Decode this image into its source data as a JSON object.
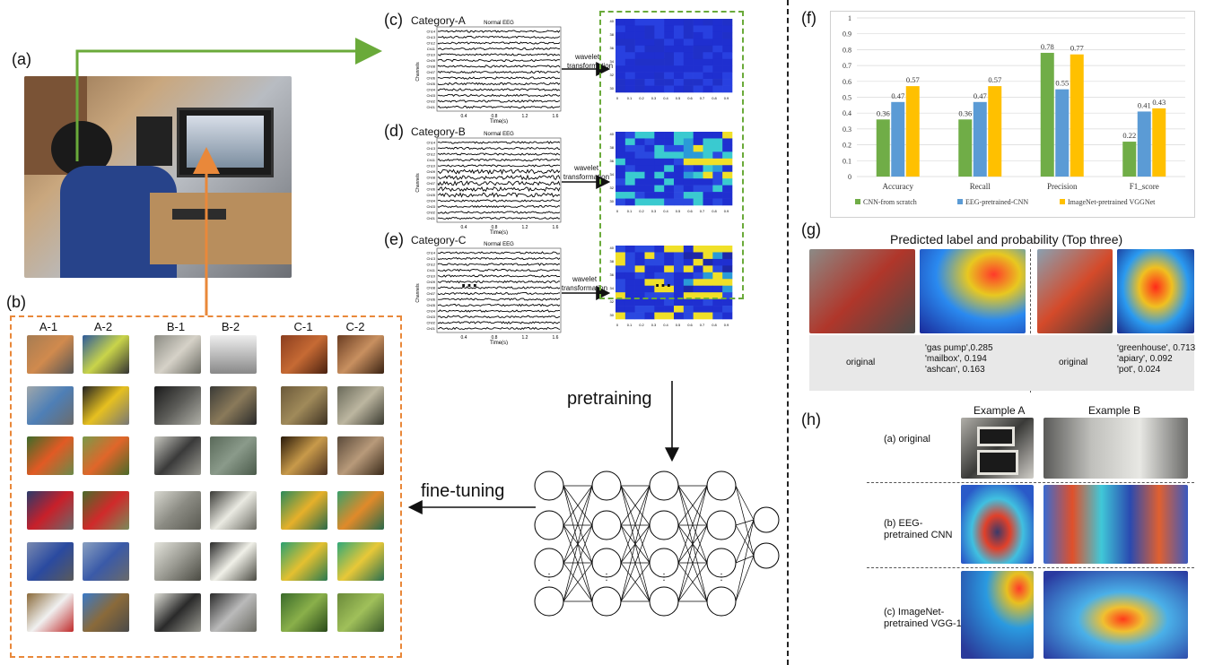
{
  "panels": {
    "a": "(a)",
    "b": "(b)",
    "c": "(c)",
    "d": "(d)",
    "e": "(e)",
    "f": "(f)",
    "g": "(g)",
    "h": "(h)"
  },
  "eeg": {
    "categories": [
      "Category-A",
      "Category-B",
      "Category-C"
    ],
    "plot_title": "Normal EEG",
    "ylabel": "Channels",
    "xlabel": "Time(s)",
    "channels": [
      "Ch14",
      "Ch13",
      "Ch12",
      "Ch11",
      "Ch10",
      "Ch09",
      "Ch08",
      "Ch07",
      "Ch06",
      "Ch05",
      "Ch04",
      "Ch03",
      "Ch02",
      "Ch01"
    ],
    "xticks": [
      "0.4",
      "0.8",
      "1.2",
      "1.6"
    ],
    "arrow_label_1": "wavelet",
    "arrow_label_2": "transformation",
    "heat_xticks": [
      "0",
      "0.1",
      "0.2",
      "0.3",
      "0.4",
      "0.5",
      "0.6",
      "0.7",
      "0.8",
      "0.9"
    ],
    "heat_yticks": [
      "40",
      "38",
      "36",
      "34",
      "32",
      "30"
    ],
    "ellipsis": "…"
  },
  "dataset": {
    "column_headers": [
      "A-1",
      "A-2",
      "B-1",
      "B-2",
      "C-1",
      "C-2"
    ]
  },
  "network": {
    "pretraining": "pretraining",
    "finetuning": "fine-tuning",
    "vdots": "⋮"
  },
  "chart_data": {
    "type": "bar",
    "categories": [
      "Accuracy",
      "Recall",
      "Precision",
      "F1_score"
    ],
    "series": [
      {
        "name": "CNN-from scratch",
        "values": [
          0.36,
          0.36,
          0.78,
          0.22
        ],
        "color": "#70ad47"
      },
      {
        "name": "EEG-pretrained-CNN",
        "values": [
          0.47,
          0.47,
          0.55,
          0.41
        ],
        "color": "#5b9bd5"
      },
      {
        "name": "ImageNet-pretrained VGGNet",
        "values": [
          0.57,
          0.57,
          0.77,
          0.43
        ],
        "color": "#ffc000"
      }
    ],
    "value_labels": [
      [
        "0.36",
        "0.36",
        "0.78",
        "0.22"
      ],
      [
        "0.47",
        "0.47",
        "0.55",
        "0.41"
      ],
      [
        "0.57",
        "0.57",
        "0.77",
        "0.43"
      ]
    ],
    "ylim": [
      0,
      1
    ],
    "yticks": [
      "0",
      "0.1",
      "0.2",
      "0.3",
      "0.4",
      "0.5",
      "0.6",
      "0.7",
      "0.8",
      "0.9",
      "1"
    ],
    "grid": true,
    "legend_position": "bottom"
  },
  "prediction": {
    "title": "Predicted label and probability (Top three)",
    "original_1": "original",
    "original_2": "original",
    "pred_1": [
      "'gas pump',0.285",
      "'mailbox', 0.194",
      "'ashcan', 0.163"
    ],
    "pred_2": [
      "'greenhouse', 0.713",
      "'apiary', 0.092",
      "'pot', 0.024"
    ]
  },
  "examples": {
    "col_a": "Example A",
    "col_b": "Example B",
    "row_1": "(a) original",
    "row_2": [
      "(b) EEG-",
      "pretrained CNN"
    ],
    "row_3": [
      "(c) ImageNet-",
      "pretrained VGG-16"
    ]
  }
}
